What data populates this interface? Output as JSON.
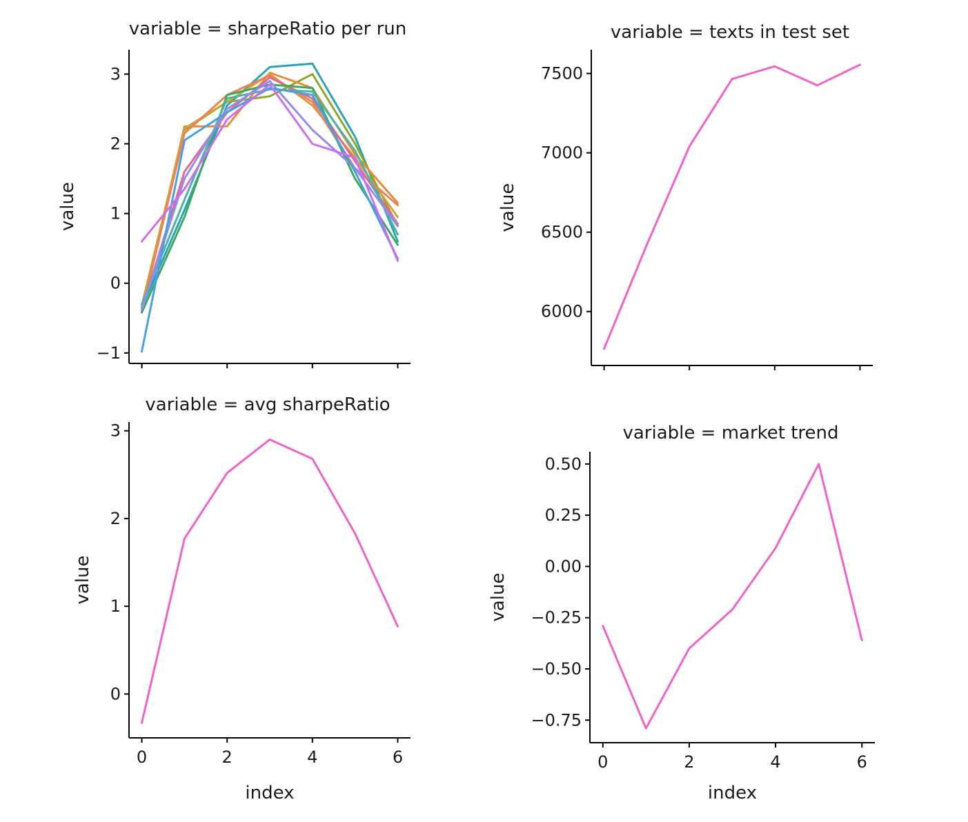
{
  "chart_data": [
    {
      "type": "line",
      "title": "variable = sharpeRatio per run",
      "xlabel": "",
      "ylabel": "value",
      "x": [
        0,
        1,
        2,
        3,
        4,
        5,
        6
      ],
      "xlim": [
        -0.3,
        6.3
      ],
      "ylim": [
        -1.15,
        3.35
      ],
      "yticks": [
        -1,
        0,
        1,
        2,
        3
      ],
      "ytick_labels": [
        "−1",
        "0",
        "1",
        "2",
        "3"
      ],
      "xticks": [
        0,
        2,
        4,
        6
      ],
      "xtick_labels": [],
      "series": [
        {
          "color": "#2ca3b5",
          "values": [
            -0.35,
            1.05,
            2.55,
            3.1,
            3.15,
            2.1,
            0.6
          ]
        },
        {
          "color": "#8fa62a",
          "values": [
            -0.38,
            2.2,
            2.6,
            2.68,
            3.0,
            2.0,
            0.82
          ]
        },
        {
          "color": "#e98a36",
          "values": [
            -0.4,
            2.25,
            2.25,
            3.02,
            2.8,
            1.85,
            1.15
          ]
        },
        {
          "color": "#d2a23a",
          "values": [
            -0.32,
            2.22,
            2.6,
            3.0,
            2.55,
            1.8,
            0.95
          ]
        },
        {
          "color": "#e8845a",
          "values": [
            -0.4,
            2.15,
            2.7,
            2.98,
            2.6,
            1.65,
            1.12
          ]
        },
        {
          "color": "#e26a8c",
          "values": [
            -0.38,
            1.6,
            2.45,
            2.95,
            2.65,
            1.75,
            0.85
          ]
        },
        {
          "color": "#3aab5c",
          "values": [
            -0.42,
            0.95,
            2.7,
            2.85,
            2.8,
            1.5,
            0.55
          ]
        },
        {
          "color": "#4bb3a8",
          "values": [
            -0.3,
            1.2,
            2.65,
            2.78,
            2.75,
            1.9,
            0.7
          ]
        },
        {
          "color": "#8f8ef0",
          "values": [
            -0.38,
            1.5,
            2.5,
            2.9,
            2.2,
            1.65,
            0.82
          ]
        },
        {
          "color": "#4a9fe0",
          "values": [
            -0.98,
            2.05,
            2.45,
            2.8,
            2.7,
            1.6,
            0.35
          ]
        },
        {
          "color": "#cc6ef0",
          "values": [
            0.6,
            1.35,
            2.35,
            2.85,
            2.0,
            1.8,
            0.32
          ]
        }
      ]
    },
    {
      "type": "line",
      "title": "variable = texts in test set",
      "xlabel": "",
      "ylabel": "value",
      "x": [
        0,
        1,
        2,
        3,
        4,
        5,
        6
      ],
      "xlim": [
        -0.3,
        6.3
      ],
      "ylim": [
        5660,
        7650
      ],
      "yticks": [
        6000,
        6500,
        7000,
        7500
      ],
      "ytick_labels": [
        "6000",
        "6500",
        "7000",
        "7500"
      ],
      "xticks": [
        0,
        2,
        4,
        6
      ],
      "xtick_labels": [],
      "series": [
        {
          "color": "#f062c8",
          "values": [
            5765,
            6420,
            7040,
            7465,
            7545,
            7425,
            7555
          ]
        }
      ]
    },
    {
      "type": "line",
      "title": "variable = avg sharpeRatio",
      "xlabel": "index",
      "ylabel": "value",
      "x": [
        0,
        1,
        2,
        3,
        4,
        5,
        6
      ],
      "xlim": [
        -0.3,
        6.3
      ],
      "ylim": [
        -0.5,
        3.1
      ],
      "yticks": [
        0,
        1,
        2,
        3
      ],
      "ytick_labels": [
        "0",
        "1",
        "2",
        "3"
      ],
      "xticks": [
        0,
        2,
        4,
        6
      ],
      "xtick_labels": [
        "0",
        "2",
        "4",
        "6"
      ],
      "series": [
        {
          "color": "#f062c8",
          "values": [
            -0.33,
            1.77,
            2.52,
            2.9,
            2.68,
            1.83,
            0.77
          ]
        }
      ]
    },
    {
      "type": "line",
      "title": "variable = market trend",
      "xlabel": "index",
      "ylabel": "value",
      "x": [
        0,
        1,
        2,
        3,
        4,
        5,
        6
      ],
      "xlim": [
        -0.3,
        6.3
      ],
      "ylim": [
        -0.86,
        0.56
      ],
      "yticks": [
        -0.75,
        -0.5,
        -0.25,
        0.0,
        0.25,
        0.5
      ],
      "ytick_labels": [
        "−0.75",
        "−0.50",
        "−0.25",
        "0.00",
        "0.25",
        "0.50"
      ],
      "xticks": [
        0,
        2,
        4,
        6
      ],
      "xtick_labels": [
        "0",
        "2",
        "4",
        "6"
      ],
      "series": [
        {
          "color": "#f062c8",
          "values": [
            -0.29,
            -0.79,
            -0.4,
            -0.21,
            0.09,
            0.5,
            -0.36
          ]
        }
      ]
    }
  ]
}
